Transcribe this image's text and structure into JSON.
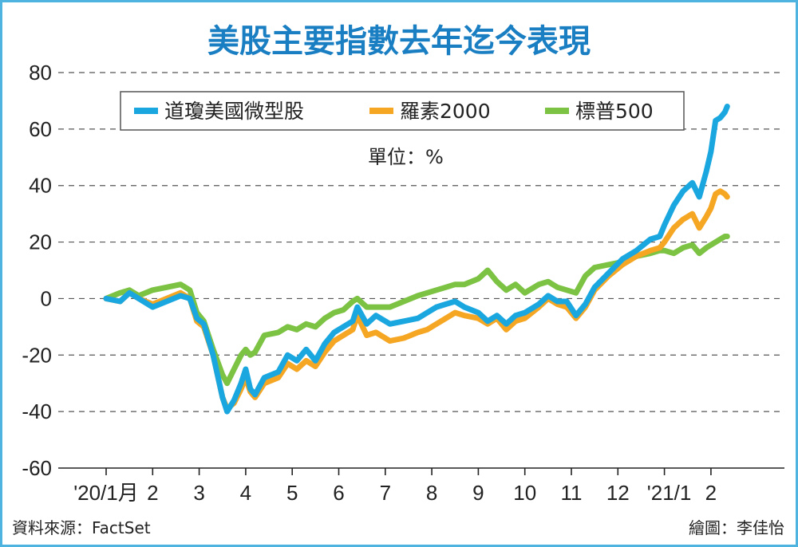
{
  "chart_data": {
    "type": "line",
    "title": "美股主要指數去年迄今表現",
    "unit_label": "單位：%",
    "ylim": [
      -60,
      80
    ],
    "y_ticks": [
      80,
      60,
      40,
      20,
      0,
      -20,
      -40,
      -60
    ],
    "y_tick_labels": [
      "80",
      "60",
      "40",
      "20",
      "0",
      "-20",
      "-40",
      "-60"
    ],
    "x_tick_labels": [
      "'20/1月",
      "2",
      "3",
      "4",
      "5",
      "6",
      "7",
      "8",
      "9",
      "10",
      "11",
      "12",
      "'21/1",
      "2"
    ],
    "x_range_months": [
      0,
      14.3
    ],
    "legend_position": "top",
    "series": [
      {
        "name": "道瓊美國微型股",
        "color": "#1aa7e0",
        "points": [
          [
            0.0,
            0
          ],
          [
            0.3,
            -1
          ],
          [
            0.5,
            2
          ],
          [
            0.7,
            0
          ],
          [
            1.0,
            -3
          ],
          [
            1.3,
            -1
          ],
          [
            1.6,
            1
          ],
          [
            1.8,
            0
          ],
          [
            1.95,
            -7
          ],
          [
            2.1,
            -9
          ],
          [
            2.3,
            -20
          ],
          [
            2.5,
            -35
          ],
          [
            2.6,
            -40
          ],
          [
            2.75,
            -36
          ],
          [
            2.9,
            -30
          ],
          [
            3.0,
            -25
          ],
          [
            3.1,
            -32
          ],
          [
            3.2,
            -34
          ],
          [
            3.4,
            -28
          ],
          [
            3.7,
            -26
          ],
          [
            3.9,
            -20
          ],
          [
            4.1,
            -22
          ],
          [
            4.3,
            -18
          ],
          [
            4.5,
            -22
          ],
          [
            4.7,
            -16
          ],
          [
            4.9,
            -12
          ],
          [
            5.1,
            -10
          ],
          [
            5.3,
            -8
          ],
          [
            5.4,
            -3
          ],
          [
            5.6,
            -9
          ],
          [
            5.8,
            -6
          ],
          [
            6.1,
            -9
          ],
          [
            6.4,
            -8
          ],
          [
            6.7,
            -7
          ],
          [
            6.9,
            -5
          ],
          [
            7.1,
            -3
          ],
          [
            7.3,
            -2
          ],
          [
            7.5,
            -1
          ],
          [
            7.7,
            -3
          ],
          [
            8.0,
            -5
          ],
          [
            8.2,
            -8
          ],
          [
            8.4,
            -6
          ],
          [
            8.6,
            -9
          ],
          [
            8.8,
            -6
          ],
          [
            9.0,
            -5
          ],
          [
            9.3,
            -2
          ],
          [
            9.5,
            1
          ],
          [
            9.7,
            -1
          ],
          [
            9.9,
            -1
          ],
          [
            10.1,
            -6
          ],
          [
            10.3,
            -2
          ],
          [
            10.5,
            4
          ],
          [
            10.8,
            9
          ],
          [
            11.1,
            14
          ],
          [
            11.4,
            17
          ],
          [
            11.7,
            21
          ],
          [
            11.9,
            22
          ],
          [
            12.0,
            26
          ],
          [
            12.2,
            33
          ],
          [
            12.4,
            38
          ],
          [
            12.6,
            41
          ],
          [
            12.75,
            36
          ],
          [
            12.9,
            45
          ],
          [
            13.0,
            52
          ],
          [
            13.1,
            63
          ],
          [
            13.2,
            64
          ],
          [
            13.3,
            66
          ],
          [
            13.35,
            68
          ]
        ]
      },
      {
        "name": "羅素2000",
        "color": "#f5a623",
        "points": [
          [
            0.0,
            0
          ],
          [
            0.3,
            -1
          ],
          [
            0.5,
            2
          ],
          [
            0.7,
            0
          ],
          [
            1.0,
            -2
          ],
          [
            1.3,
            0
          ],
          [
            1.6,
            2
          ],
          [
            1.8,
            0
          ],
          [
            1.95,
            -8
          ],
          [
            2.1,
            -10
          ],
          [
            2.3,
            -20
          ],
          [
            2.5,
            -35
          ],
          [
            2.6,
            -39
          ],
          [
            2.75,
            -37
          ],
          [
            2.9,
            -32
          ],
          [
            3.0,
            -28
          ],
          [
            3.1,
            -33
          ],
          [
            3.2,
            -35
          ],
          [
            3.4,
            -30
          ],
          [
            3.7,
            -28
          ],
          [
            3.9,
            -23
          ],
          [
            4.1,
            -25
          ],
          [
            4.3,
            -22
          ],
          [
            4.5,
            -24
          ],
          [
            4.7,
            -19
          ],
          [
            4.9,
            -15
          ],
          [
            5.1,
            -13
          ],
          [
            5.3,
            -11
          ],
          [
            5.4,
            -6
          ],
          [
            5.6,
            -13
          ],
          [
            5.8,
            -12
          ],
          [
            6.1,
            -15
          ],
          [
            6.4,
            -14
          ],
          [
            6.7,
            -12
          ],
          [
            6.9,
            -11
          ],
          [
            7.1,
            -9
          ],
          [
            7.3,
            -7
          ],
          [
            7.5,
            -5
          ],
          [
            7.7,
            -6
          ],
          [
            8.0,
            -7
          ],
          [
            8.2,
            -9
          ],
          [
            8.4,
            -7
          ],
          [
            8.6,
            -11
          ],
          [
            8.8,
            -8
          ],
          [
            9.0,
            -7
          ],
          [
            9.3,
            -3
          ],
          [
            9.5,
            0
          ],
          [
            9.7,
            -2
          ],
          [
            9.9,
            -3
          ],
          [
            10.1,
            -7
          ],
          [
            10.3,
            -3
          ],
          [
            10.5,
            3
          ],
          [
            10.8,
            8
          ],
          [
            11.1,
            12
          ],
          [
            11.4,
            15
          ],
          [
            11.7,
            17
          ],
          [
            11.9,
            18
          ],
          [
            12.0,
            20
          ],
          [
            12.2,
            25
          ],
          [
            12.4,
            28
          ],
          [
            12.6,
            30
          ],
          [
            12.75,
            25
          ],
          [
            12.9,
            29
          ],
          [
            13.0,
            32
          ],
          [
            13.1,
            37
          ],
          [
            13.2,
            38
          ],
          [
            13.3,
            37
          ],
          [
            13.35,
            36
          ]
        ]
      },
      {
        "name": "標普500",
        "color": "#7cc243",
        "points": [
          [
            0.0,
            0
          ],
          [
            0.3,
            2
          ],
          [
            0.5,
            3
          ],
          [
            0.7,
            1
          ],
          [
            1.0,
            3
          ],
          [
            1.3,
            4
          ],
          [
            1.6,
            5
          ],
          [
            1.8,
            3
          ],
          [
            1.95,
            -5
          ],
          [
            2.1,
            -8
          ],
          [
            2.3,
            -18
          ],
          [
            2.5,
            -27
          ],
          [
            2.6,
            -30
          ],
          [
            2.75,
            -25
          ],
          [
            2.9,
            -20
          ],
          [
            3.0,
            -18
          ],
          [
            3.1,
            -20
          ],
          [
            3.2,
            -19
          ],
          [
            3.4,
            -13
          ],
          [
            3.7,
            -12
          ],
          [
            3.9,
            -10
          ],
          [
            4.1,
            -11
          ],
          [
            4.3,
            -9
          ],
          [
            4.5,
            -10
          ],
          [
            4.7,
            -7
          ],
          [
            4.9,
            -5
          ],
          [
            5.1,
            -4
          ],
          [
            5.3,
            -1
          ],
          [
            5.4,
            0
          ],
          [
            5.6,
            -3
          ],
          [
            5.8,
            -3
          ],
          [
            6.1,
            -3
          ],
          [
            6.4,
            -1
          ],
          [
            6.7,
            1
          ],
          [
            6.9,
            2
          ],
          [
            7.1,
            3
          ],
          [
            7.3,
            4
          ],
          [
            7.5,
            5
          ],
          [
            7.7,
            5
          ],
          [
            8.0,
            7
          ],
          [
            8.2,
            10
          ],
          [
            8.4,
            6
          ],
          [
            8.6,
            3
          ],
          [
            8.8,
            5
          ],
          [
            9.0,
            2
          ],
          [
            9.3,
            5
          ],
          [
            9.5,
            6
          ],
          [
            9.7,
            4
          ],
          [
            9.9,
            3
          ],
          [
            10.1,
            2
          ],
          [
            10.3,
            8
          ],
          [
            10.5,
            11
          ],
          [
            10.8,
            12
          ],
          [
            11.1,
            13
          ],
          [
            11.4,
            15
          ],
          [
            11.7,
            16
          ],
          [
            11.9,
            17
          ],
          [
            12.0,
            17
          ],
          [
            12.2,
            16
          ],
          [
            12.4,
            18
          ],
          [
            12.6,
            19
          ],
          [
            12.75,
            16
          ],
          [
            12.9,
            18
          ],
          [
            13.0,
            19
          ],
          [
            13.1,
            20
          ],
          [
            13.2,
            21
          ],
          [
            13.3,
            22
          ],
          [
            13.35,
            22
          ]
        ]
      }
    ]
  },
  "footer": {
    "source": "資料來源：FactSet",
    "credit": "繪圖：李佳怡"
  }
}
